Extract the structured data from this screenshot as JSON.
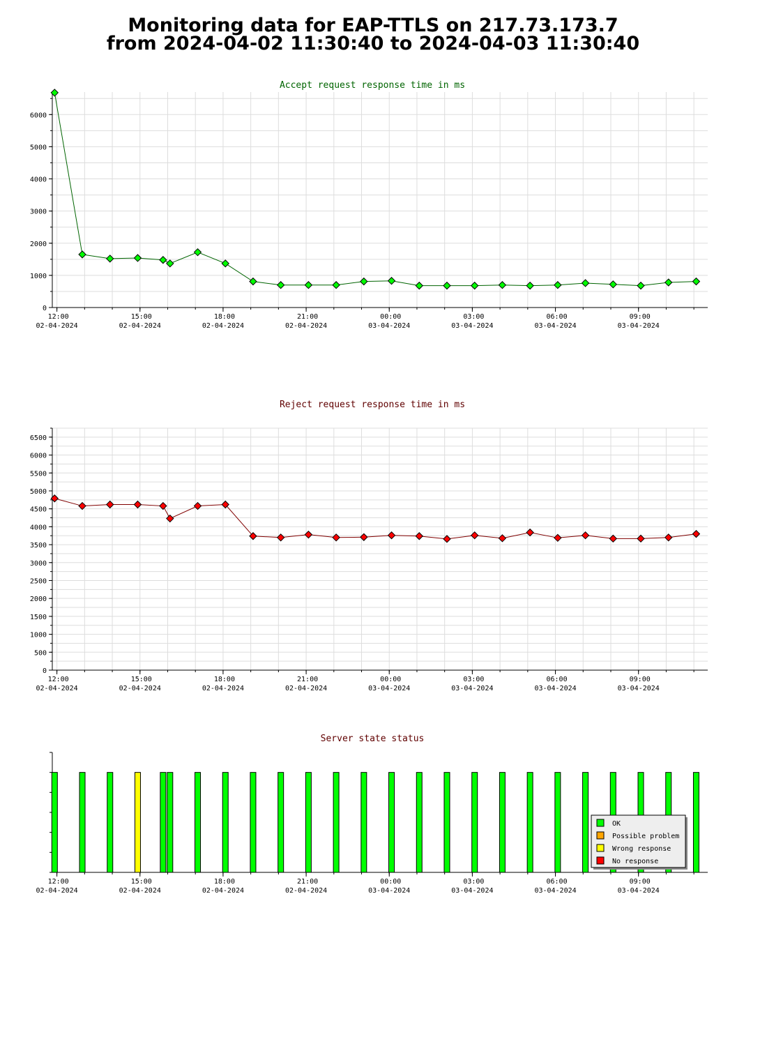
{
  "page": {
    "title_line1": "Monitoring data for EAP-TTLS on 217.73.173.7",
    "title_line2": "from 2024-04-02 11:30:40 to 2024-04-03 11:30:40"
  },
  "colors": {
    "accept_title": "#006400",
    "reject_title": "#600000",
    "status_title": "#600000",
    "accept_line": "#006400",
    "accept_marker": "#00ff00",
    "reject_line": "#800000",
    "reject_marker": "#ff0000",
    "grid": "#dddddd",
    "ok": "#00ff00",
    "possible_problem": "#ffa500",
    "wrong_response": "#ffff00",
    "no_response": "#ff0000"
  },
  "chart_data": [
    {
      "id": "accept",
      "type": "line",
      "title": "Accept request response time in ms",
      "xlabel": "",
      "ylabel": "",
      "x_ticks": [
        {
          "time": "12:00",
          "date": "02-04-2024"
        },
        {
          "time": "15:00",
          "date": "02-04-2024"
        },
        {
          "time": "18:00",
          "date": "02-04-2024"
        },
        {
          "time": "21:00",
          "date": "02-04-2024"
        },
        {
          "time": "00:00",
          "date": "03-04-2024"
        },
        {
          "time": "03:00",
          "date": "03-04-2024"
        },
        {
          "time": "06:00",
          "date": "03-04-2024"
        },
        {
          "time": "09:00",
          "date": "03-04-2024"
        }
      ],
      "xlim": [
        "2024-04-02 11:50",
        "2024-04-03 11:30"
      ],
      "y_ticks": [
        0,
        1000,
        2000,
        3000,
        4000,
        5000,
        6000
      ],
      "ylim": [
        0,
        6700
      ],
      "grid": true,
      "x": [
        "2024-04-02 11:55",
        "2024-04-02 12:55",
        "2024-04-02 13:55",
        "2024-04-02 14:55",
        "2024-04-02 15:50",
        "2024-04-02 16:05",
        "2024-04-02 17:05",
        "2024-04-02 18:05",
        "2024-04-02 19:05",
        "2024-04-02 20:05",
        "2024-04-02 21:05",
        "2024-04-02 22:05",
        "2024-04-02 23:05",
        "2024-04-03 00:05",
        "2024-04-03 01:05",
        "2024-04-03 02:05",
        "2024-04-03 03:05",
        "2024-04-03 04:05",
        "2024-04-03 05:05",
        "2024-04-03 06:05",
        "2024-04-03 07:05",
        "2024-04-03 08:05",
        "2024-04-03 09:05",
        "2024-04-03 10:05",
        "2024-04-03 11:05"
      ],
      "values": [
        6680,
        1650,
        1520,
        1540,
        1480,
        1370,
        1720,
        1370,
        810,
        700,
        700,
        700,
        810,
        830,
        680,
        680,
        680,
        700,
        680,
        700,
        760,
        720,
        680,
        780,
        810
      ]
    },
    {
      "id": "reject",
      "type": "line",
      "title": "Reject request response time in ms",
      "xlabel": "",
      "ylabel": "",
      "x_ticks": [
        {
          "time": "12:00",
          "date": "02-04-2024"
        },
        {
          "time": "15:00",
          "date": "02-04-2024"
        },
        {
          "time": "18:00",
          "date": "02-04-2024"
        },
        {
          "time": "21:00",
          "date": "02-04-2024"
        },
        {
          "time": "00:00",
          "date": "03-04-2024"
        },
        {
          "time": "03:00",
          "date": "03-04-2024"
        },
        {
          "time": "06:00",
          "date": "03-04-2024"
        },
        {
          "time": "09:00",
          "date": "03-04-2024"
        }
      ],
      "xlim": [
        "2024-04-02 11:50",
        "2024-04-03 11:30"
      ],
      "y_ticks": [
        0,
        500,
        1000,
        1500,
        2000,
        2500,
        3000,
        3500,
        4000,
        4500,
        5000,
        5500,
        6000,
        6500
      ],
      "ylim": [
        0,
        6750
      ],
      "grid": true,
      "x": [
        "2024-04-02 11:55",
        "2024-04-02 12:55",
        "2024-04-02 13:55",
        "2024-04-02 14:55",
        "2024-04-02 15:50",
        "2024-04-02 16:05",
        "2024-04-02 17:05",
        "2024-04-02 18:05",
        "2024-04-02 19:05",
        "2024-04-02 20:05",
        "2024-04-02 21:05",
        "2024-04-02 22:05",
        "2024-04-02 23:05",
        "2024-04-03 00:05",
        "2024-04-03 01:05",
        "2024-04-03 02:05",
        "2024-04-03 03:05",
        "2024-04-03 04:05",
        "2024-04-03 05:05",
        "2024-04-03 06:05",
        "2024-04-03 07:05",
        "2024-04-03 08:05",
        "2024-04-03 09:05",
        "2024-04-03 10:05",
        "2024-04-03 11:05"
      ],
      "values": [
        4790,
        4580,
        4620,
        4620,
        4580,
        4230,
        4580,
        4620,
        3740,
        3700,
        3780,
        3700,
        3710,
        3760,
        3740,
        3660,
        3760,
        3680,
        3840,
        3690,
        3760,
        3670,
        3670,
        3700,
        3800
      ]
    },
    {
      "id": "status",
      "type": "bar",
      "title": "Server state status",
      "xlabel": "",
      "ylabel": "",
      "x_ticks": [
        {
          "time": "12:00",
          "date": "02-04-2024"
        },
        {
          "time": "15:00",
          "date": "02-04-2024"
        },
        {
          "time": "18:00",
          "date": "02-04-2024"
        },
        {
          "time": "21:00",
          "date": "02-04-2024"
        },
        {
          "time": "00:00",
          "date": "03-04-2024"
        },
        {
          "time": "03:00",
          "date": "03-04-2024"
        },
        {
          "time": "06:00",
          "date": "03-04-2024"
        },
        {
          "time": "09:00",
          "date": "03-04-2024"
        }
      ],
      "xlim": [
        "2024-04-02 11:50",
        "2024-04-03 11:30"
      ],
      "grid": false,
      "legend": {
        "placement": "bottom-right",
        "items": [
          {
            "label": "OK",
            "color_key": "ok"
          },
          {
            "label": "Possible problem",
            "color_key": "possible_problem"
          },
          {
            "label": "Wrong response",
            "color_key": "wrong_response"
          },
          {
            "label": "No response",
            "color_key": "no_response"
          }
        ]
      },
      "x": [
        "2024-04-02 11:55",
        "2024-04-02 12:55",
        "2024-04-02 13:55",
        "2024-04-02 14:55",
        "2024-04-02 15:50",
        "2024-04-02 16:05",
        "2024-04-02 17:05",
        "2024-04-02 18:05",
        "2024-04-02 19:05",
        "2024-04-02 20:05",
        "2024-04-02 21:05",
        "2024-04-02 22:05",
        "2024-04-02 23:05",
        "2024-04-03 00:05",
        "2024-04-03 01:05",
        "2024-04-03 02:05",
        "2024-04-03 03:05",
        "2024-04-03 04:05",
        "2024-04-03 05:05",
        "2024-04-03 06:05",
        "2024-04-03 07:05",
        "2024-04-03 08:05",
        "2024-04-03 09:05",
        "2024-04-03 10:05",
        "2024-04-03 11:05"
      ],
      "states": [
        "ok",
        "ok",
        "ok",
        "wrong_response",
        "ok",
        "ok",
        "ok",
        "ok",
        "ok",
        "ok",
        "ok",
        "ok",
        "ok",
        "ok",
        "ok",
        "ok",
        "ok",
        "ok",
        "ok",
        "ok",
        "ok",
        "ok",
        "ok",
        "ok",
        "ok"
      ]
    }
  ]
}
